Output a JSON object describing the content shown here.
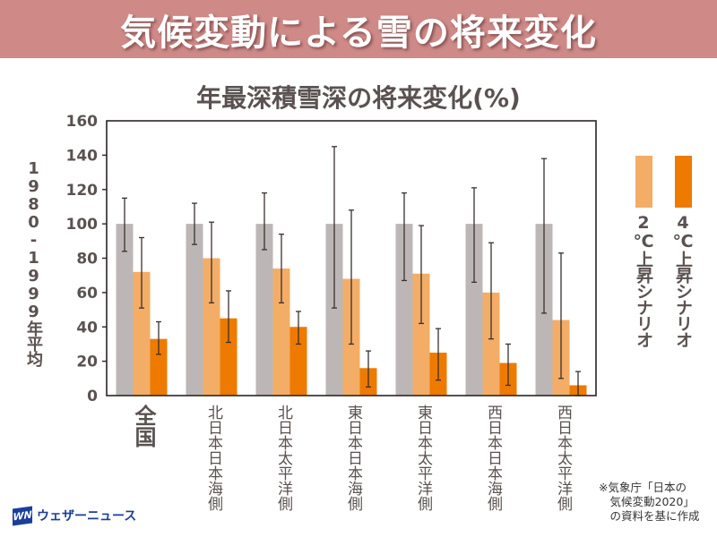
{
  "banner": {
    "title": "気候変動による雪の将来変化"
  },
  "colors": {
    "banner": "#cf8a88",
    "baseline": "#bcb7b6",
    "scenario2": "#f3ad66",
    "scenario4": "#ee7a00",
    "text": "#5a5250"
  },
  "chart_data": {
    "type": "bar",
    "title": "年最深積雪深の将来変化(%)",
    "ylabel": "1980-1999年平均",
    "xlabel": "",
    "ylim": [
      0,
      160
    ],
    "yticks": [
      "0",
      "20",
      "40",
      "60",
      "80",
      "100",
      "120",
      "140",
      "160"
    ],
    "categories": [
      "全国",
      "北日本日本海側",
      "北日本太平洋側",
      "東日本日本海側",
      "東日本太平洋側",
      "西日本日本海側",
      "西日本太平洋側"
    ],
    "legend_position": "right",
    "series": [
      {
        "name": "1980-1999年平均",
        "color": "#bcb7b6",
        "values": [
          100,
          100,
          100,
          100,
          100,
          100,
          100
        ],
        "err_low": [
          84,
          88,
          85,
          51,
          67,
          66,
          48
        ],
        "err_high": [
          115,
          112,
          118,
          145,
          118,
          121,
          138
        ]
      },
      {
        "name": "2℃上昇シナリオ",
        "color": "#f3ad66",
        "values": [
          72,
          80,
          74,
          68,
          71,
          60,
          44
        ],
        "err_low": [
          51,
          54,
          54,
          30,
          42,
          33,
          10
        ],
        "err_high": [
          92,
          101,
          94,
          108,
          99,
          89,
          83
        ]
      },
      {
        "name": "4℃上昇シナリオ",
        "color": "#ee7a00",
        "values": [
          33,
          45,
          40,
          16,
          25,
          19,
          6
        ],
        "err_low": [
          24,
          31,
          30,
          5,
          9,
          6,
          0
        ],
        "err_high": [
          43,
          61,
          49,
          26,
          39,
          30,
          14
        ]
      }
    ],
    "grid": false
  },
  "legend": {
    "items": [
      {
        "label": "2℃上昇シナリオ"
      },
      {
        "label": "4℃上昇シナリオ"
      }
    ]
  },
  "source_note": "※気象庁「日本の\n　気候変動2020」\n　の資料を基に作成",
  "logo": {
    "mark": "WN",
    "text": "ウェザーニュース"
  }
}
